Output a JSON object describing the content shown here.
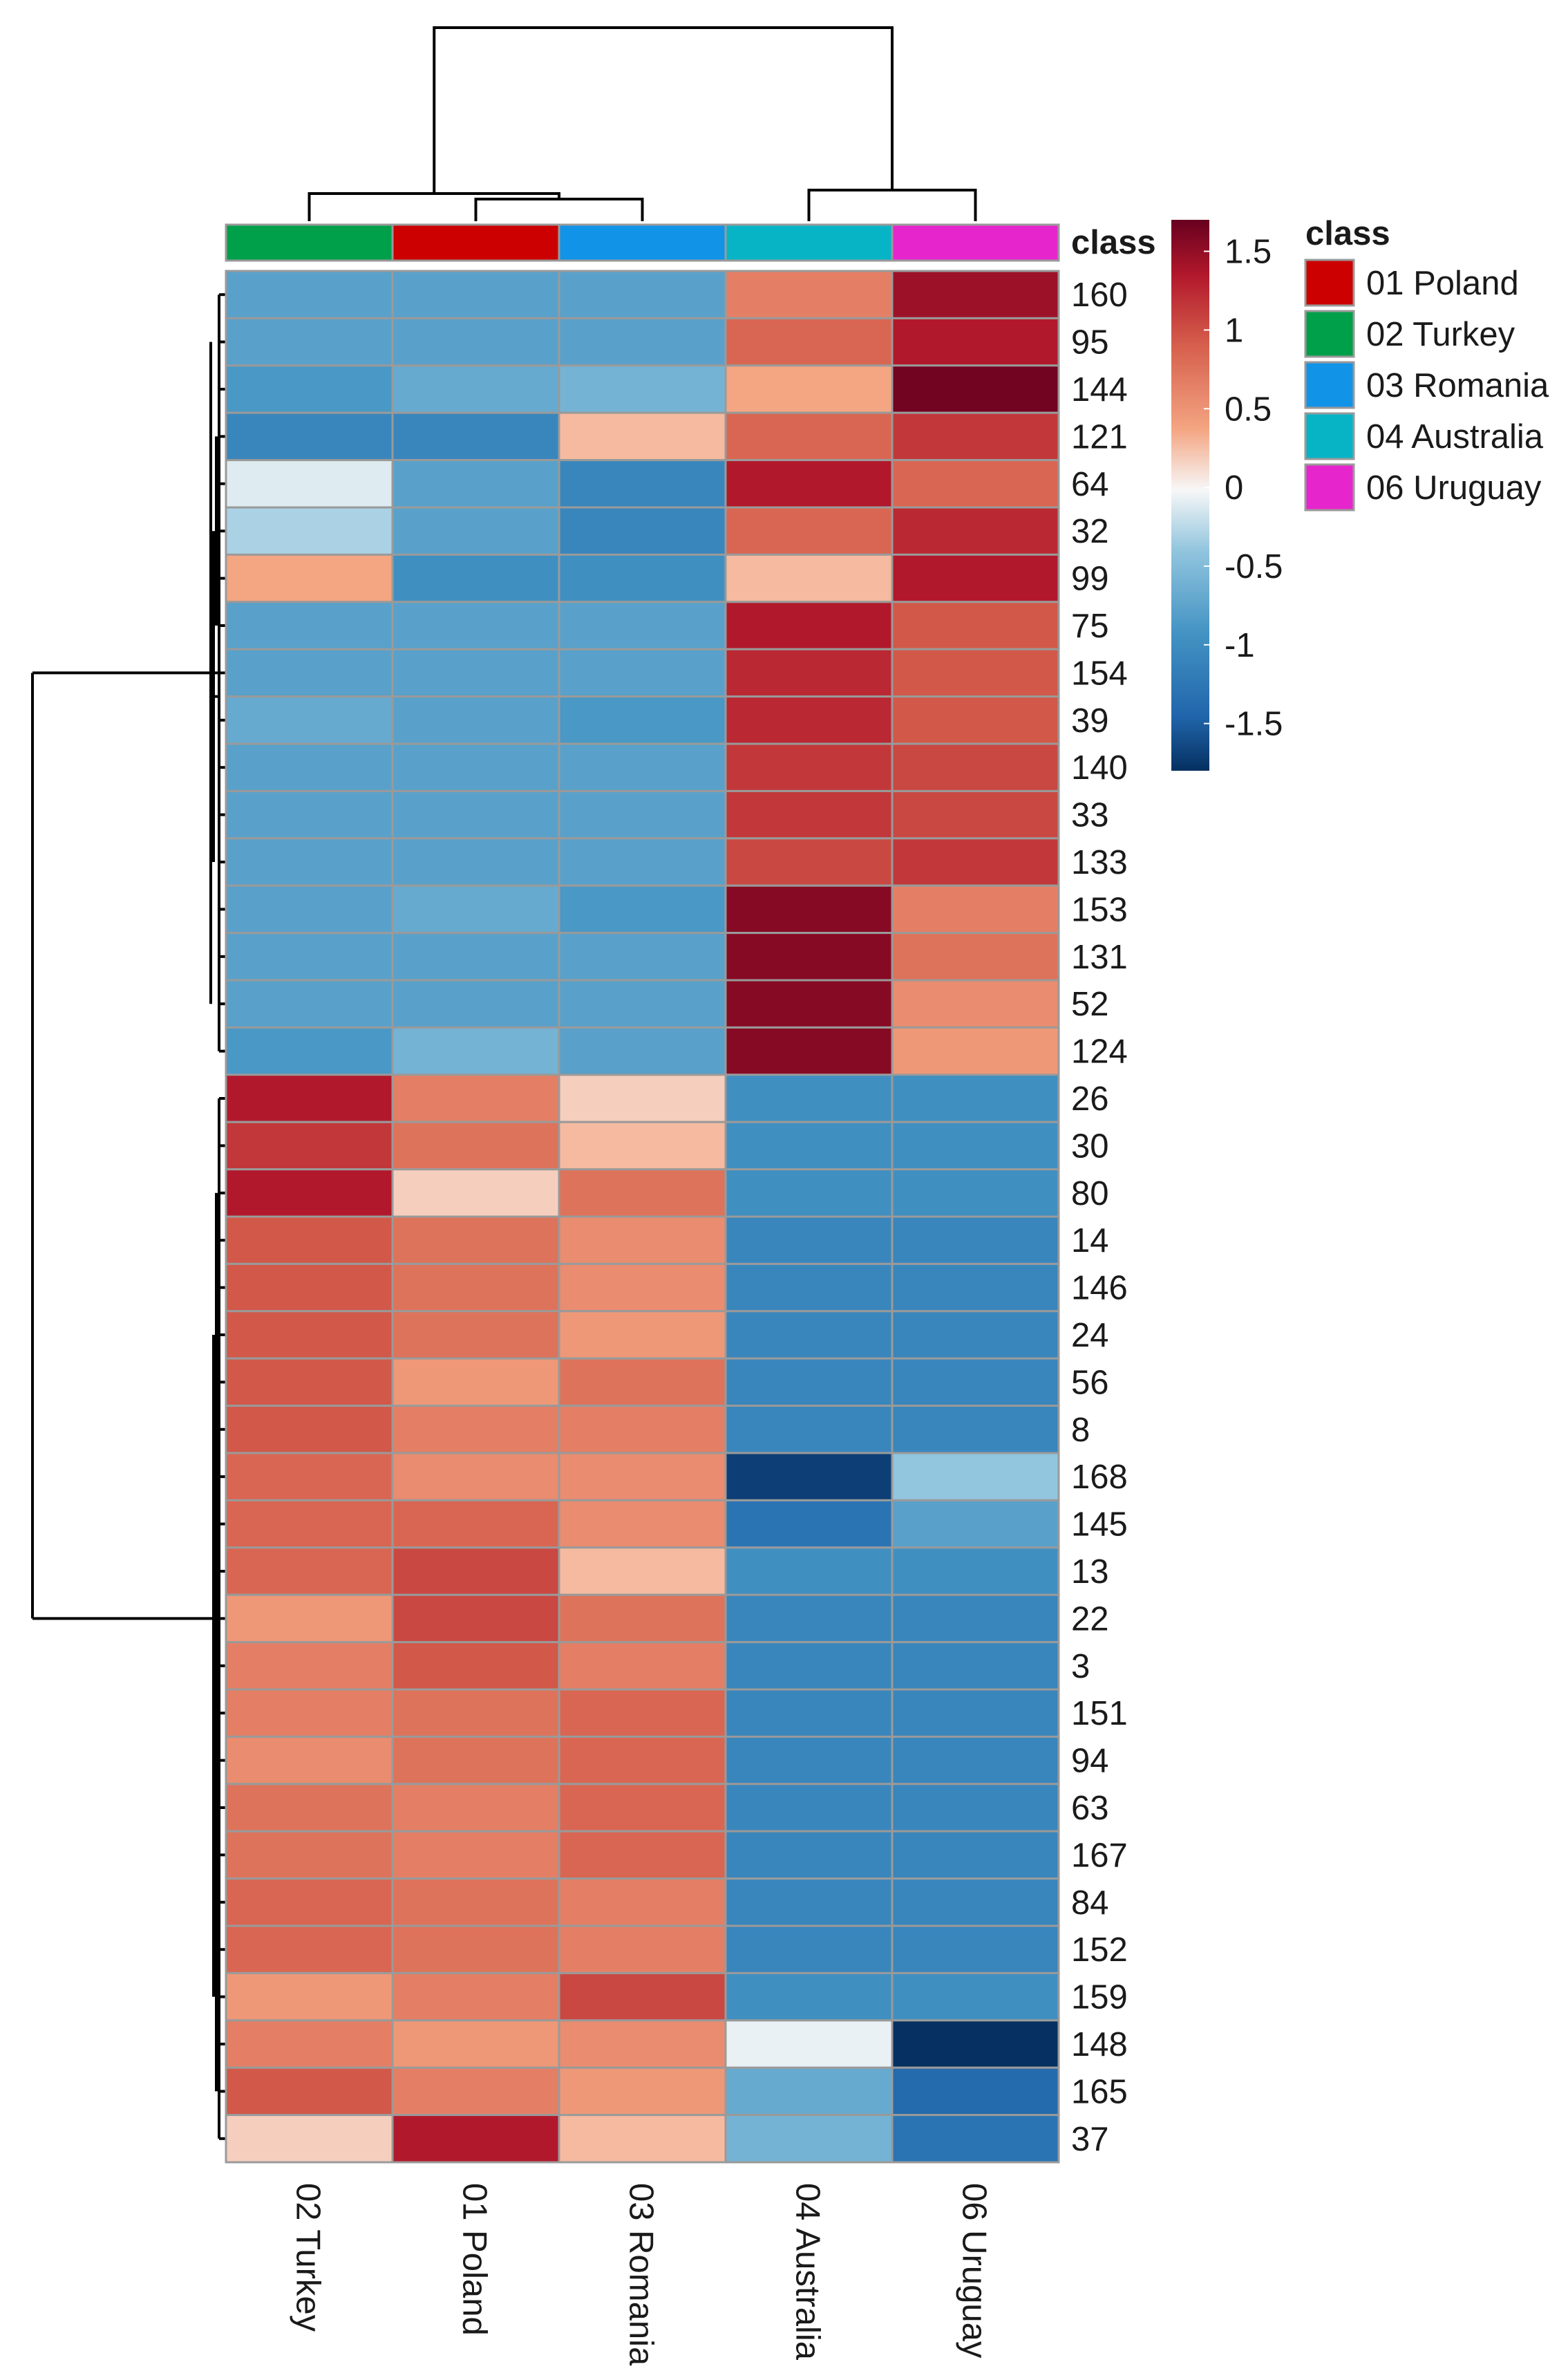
{
  "chart_data": {
    "type": "heatmap",
    "title": "",
    "columns": [
      "02 Turkey",
      "01 Poland",
      "03 Romania",
      "04 Australia",
      "06 Uruguay"
    ],
    "rows": [
      "160",
      "95",
      "144",
      "121",
      "64",
      "32",
      "99",
      "75",
      "154",
      "39",
      "140",
      "33",
      "133",
      "153",
      "131",
      "52",
      "124",
      "26",
      "30",
      "80",
      "14",
      "146",
      "24",
      "56",
      "8",
      "168",
      "145",
      "13",
      "22",
      "3",
      "151",
      "94",
      "63",
      "167",
      "84",
      "152",
      "159",
      "148",
      "165",
      "37"
    ],
    "values": [
      [
        -0.8,
        -0.8,
        -0.8,
        0.7,
        1.5
      ],
      [
        -0.8,
        -0.8,
        -0.8,
        0.9,
        1.4
      ],
      [
        -0.9,
        -0.7,
        -0.6,
        0.4,
        1.7
      ],
      [
        -1.1,
        -1.1,
        0.3,
        0.9,
        1.2
      ],
      [
        -0.1,
        -0.8,
        -1.1,
        1.4,
        0.9
      ],
      [
        -0.3,
        -0.8,
        -1.1,
        0.9,
        1.3
      ],
      [
        0.4,
        -1.0,
        -1.0,
        0.3,
        1.4
      ],
      [
        -0.8,
        -0.8,
        -0.8,
        1.4,
        1.0
      ],
      [
        -0.8,
        -0.8,
        -0.8,
        1.3,
        1.0
      ],
      [
        -0.7,
        -0.8,
        -0.9,
        1.3,
        1.0
      ],
      [
        -0.8,
        -0.8,
        -0.8,
        1.2,
        1.1
      ],
      [
        -0.8,
        -0.8,
        -0.8,
        1.2,
        1.1
      ],
      [
        -0.8,
        -0.8,
        -0.8,
        1.1,
        1.2
      ],
      [
        -0.8,
        -0.7,
        -0.9,
        1.6,
        0.7
      ],
      [
        -0.8,
        -0.8,
        -0.8,
        1.6,
        0.8
      ],
      [
        -0.8,
        -0.8,
        -0.8,
        1.6,
        0.6
      ],
      [
        -0.9,
        -0.6,
        -0.8,
        1.6,
        0.5
      ],
      [
        1.4,
        0.7,
        0.2,
        -1.0,
        -1.0
      ],
      [
        1.2,
        0.8,
        0.3,
        -1.0,
        -1.0
      ],
      [
        1.4,
        0.2,
        0.8,
        -1.0,
        -1.0
      ],
      [
        1.0,
        0.8,
        0.6,
        -1.1,
        -1.1
      ],
      [
        1.0,
        0.8,
        0.6,
        -1.1,
        -1.1
      ],
      [
        1.0,
        0.8,
        0.5,
        -1.1,
        -1.1
      ],
      [
        1.0,
        0.5,
        0.8,
        -1.1,
        -1.1
      ],
      [
        1.0,
        0.7,
        0.7,
        -1.1,
        -1.1
      ],
      [
        0.9,
        0.6,
        0.6,
        -1.7,
        -0.4
      ],
      [
        0.9,
        0.9,
        0.6,
        -1.3,
        -0.8
      ],
      [
        0.9,
        1.1,
        0.3,
        -1.0,
        -1.0
      ],
      [
        0.5,
        1.1,
        0.8,
        -1.1,
        -1.1
      ],
      [
        0.7,
        1.0,
        0.7,
        -1.1,
        -1.1
      ],
      [
        0.7,
        0.8,
        0.9,
        -1.1,
        -1.1
      ],
      [
        0.6,
        0.8,
        0.9,
        -1.1,
        -1.1
      ],
      [
        0.8,
        0.7,
        0.9,
        -1.1,
        -1.1
      ],
      [
        0.8,
        0.7,
        0.9,
        -1.1,
        -1.1
      ],
      [
        0.9,
        0.8,
        0.7,
        -1.1,
        -1.1
      ],
      [
        0.9,
        0.8,
        0.7,
        -1.1,
        -1.1
      ],
      [
        0.5,
        0.7,
        1.1,
        -1.0,
        -1.0
      ],
      [
        0.7,
        0.5,
        0.6,
        -0.05,
        -1.8
      ],
      [
        1.0,
        0.7,
        0.5,
        -0.7,
        -1.4
      ],
      [
        0.2,
        1.4,
        0.3,
        -0.6,
        -1.3
      ]
    ],
    "annotation": {
      "title": "class",
      "column_classes": [
        "02 Turkey",
        "01 Poland",
        "03 Romania",
        "04 Australia",
        "06 Uruguay"
      ],
      "legend": [
        {
          "label": "01 Poland",
          "color": "#CC0000"
        },
        {
          "label": "02 Turkey",
          "color": "#00A04B"
        },
        {
          "label": "03 Romania",
          "color": "#1193E8"
        },
        {
          "label": "04 Australia",
          "color": "#06B4C6"
        },
        {
          "label": "06 Uruguay",
          "color": "#E625CC"
        }
      ]
    },
    "colorbar": {
      "range": [
        -1.8,
        1.7
      ],
      "ticks": [
        1.5,
        1,
        0.5,
        0,
        -0.5,
        -1,
        -1.5
      ],
      "tick_labels": [
        "1.5",
        "1",
        "0.5",
        "0",
        "-0.5",
        "-1",
        "-1.5"
      ]
    },
    "column_dendrogram": {
      "merges": [
        [
          "01 Poland",
          "03 Romania"
        ],
        [
          "02 Turkey",
          "01 Poland + 03 Romania"
        ],
        [
          "04 Australia",
          "06 Uruguay"
        ],
        [
          "Turkey/Poland/Romania",
          "Australia/Uruguay"
        ]
      ]
    },
    "row_dendrogram": {
      "top_cluster_rows": 17,
      "bottom_cluster_rows": 23
    }
  },
  "labels": {
    "annotation_row_label": "class",
    "legend_title": "class"
  }
}
